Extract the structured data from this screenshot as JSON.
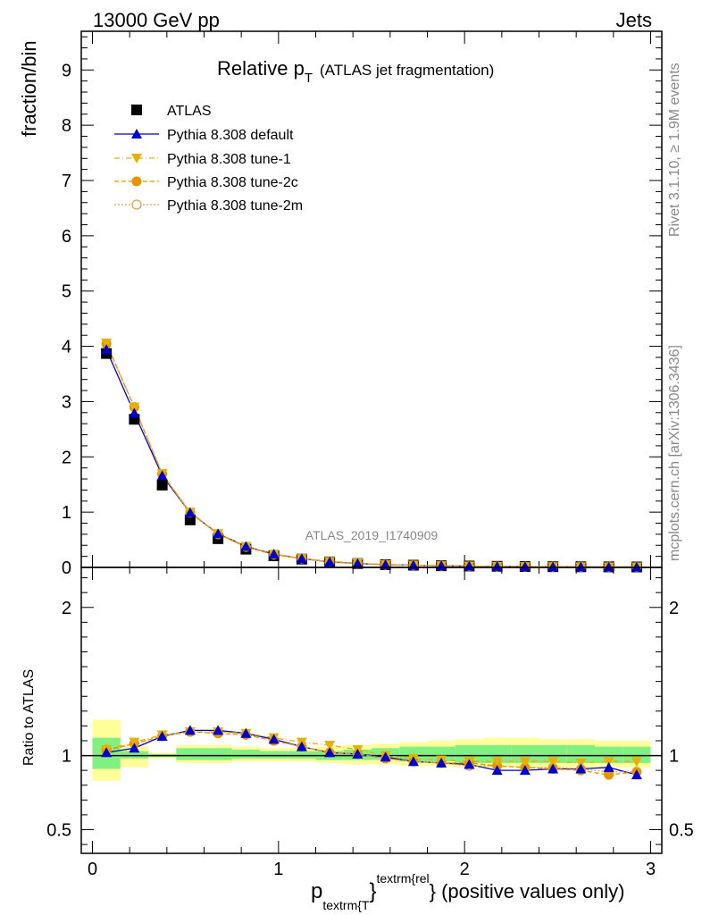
{
  "header": {
    "left": "13000 GeV pp",
    "right": "Jets"
  },
  "title": {
    "main": "Relative p",
    "sub": "T",
    "paren": "(ATLAS jet fragmentation)"
  },
  "side_labels": {
    "rivet": "Rivet 3.1.10, ≥ 1.9M events",
    "mcplots": "mcplots.cern.ch [arXiv:1306.3436]"
  },
  "watermark": "ATLAS_2019_I1740909",
  "axes": {
    "y_main_label": "fraction/bin",
    "y_ratio_label": "Ratio to ATLAS",
    "x_label_p": "p",
    "x_label_sub": "textrm{T",
    "x_label_brace": "}",
    "x_label_sup": "textrm{rel",
    "x_label_rest": "} (positive values only)",
    "main_y_ticks": [
      "0",
      "1",
      "2",
      "3",
      "4",
      "5",
      "6",
      "7",
      "8",
      "9"
    ],
    "ratio_y_ticks": [
      "0.5",
      "1",
      "2"
    ],
    "x_ticks": [
      "0",
      "1",
      "2",
      "3"
    ]
  },
  "legend": {
    "atlas": "ATLAS",
    "default": "Pythia 8.308 default",
    "tune1": "Pythia 8.308 tune-1",
    "tune2c": "Pythia 8.308 tune-2c",
    "tune2m": "Pythia 8.308 tune-2m"
  },
  "colors": {
    "atlas": "#000000",
    "default": "#0000cc",
    "tune1": "#e8b000",
    "tune2c": "#e69500",
    "tune2m": "#e0a040",
    "band_inner": "#80f080",
    "band_outer": "#ffff99"
  },
  "chart_data": {
    "type": "line",
    "xlim": [
      -0.06,
      3.06
    ],
    "ylim_main": [
      0,
      9.7
    ],
    "ylim_ratio": [
      0.34,
      2.27
    ],
    "x": [
      0.075,
      0.225,
      0.375,
      0.525,
      0.675,
      0.825,
      0.975,
      1.125,
      1.275,
      1.425,
      1.575,
      1.725,
      1.875,
      2.025,
      2.175,
      2.325,
      2.475,
      2.625,
      2.775,
      2.925
    ],
    "bin_edges": [
      0.0,
      0.15,
      0.3,
      0.45,
      0.6,
      0.75,
      0.9,
      1.05,
      1.2,
      1.35,
      1.5,
      1.65,
      1.8,
      1.95,
      2.1,
      2.25,
      2.4,
      2.55,
      2.7,
      2.85,
      3.0
    ],
    "atlas": [
      3.87,
      2.68,
      1.49,
      0.86,
      0.52,
      0.33,
      0.21,
      0.15,
      0.1,
      0.07,
      0.05,
      0.04,
      0.03,
      0.025,
      0.02,
      0.016,
      0.013,
      0.011,
      0.009,
      0.008
    ],
    "series_main": [
      {
        "key": "default",
        "values": [
          3.94,
          2.79,
          1.66,
          0.99,
          0.61,
          0.38,
          0.24,
          0.16,
          0.1,
          0.07,
          0.05,
          0.04,
          0.03,
          0.024,
          0.018,
          0.015,
          0.012,
          0.01,
          0.008,
          0.007
        ]
      },
      {
        "key": "tune1",
        "values": [
          4.06,
          2.9,
          1.7,
          1.0,
          0.61,
          0.38,
          0.24,
          0.16,
          0.11,
          0.08,
          0.05,
          0.04,
          0.03,
          0.024,
          0.019,
          0.015,
          0.012,
          0.01,
          0.009,
          0.008
        ]
      },
      {
        "key": "tune2c",
        "values": [
          4.05,
          2.9,
          1.69,
          0.99,
          0.6,
          0.37,
          0.23,
          0.16,
          0.1,
          0.07,
          0.05,
          0.04,
          0.03,
          0.023,
          0.018,
          0.015,
          0.012,
          0.01,
          0.008,
          0.007
        ]
      },
      {
        "key": "tune2m",
        "values": [
          4.04,
          2.9,
          1.69,
          0.99,
          0.6,
          0.37,
          0.23,
          0.16,
          0.1,
          0.07,
          0.05,
          0.04,
          0.03,
          0.023,
          0.018,
          0.015,
          0.012,
          0.01,
          0.008,
          0.007
        ]
      }
    ],
    "band_inner": [
      [
        0.91,
        1.12
      ],
      [
        0.98,
        1.03
      ],
      [
        0.99,
        1.01
      ],
      [
        0.97,
        1.05
      ],
      [
        0.97,
        1.05
      ],
      [
        0.98,
        1.04
      ],
      [
        0.98,
        1.03
      ],
      [
        0.98,
        1.03
      ],
      [
        0.97,
        1.03
      ],
      [
        0.97,
        1.04
      ],
      [
        0.97,
        1.05
      ],
      [
        0.96,
        1.06
      ],
      [
        0.96,
        1.06
      ],
      [
        0.95,
        1.07
      ],
      [
        0.95,
        1.07
      ],
      [
        0.95,
        1.07
      ],
      [
        0.95,
        1.07
      ],
      [
        0.95,
        1.07
      ],
      [
        0.95,
        1.06
      ],
      [
        0.95,
        1.06
      ]
    ],
    "band_outer": [
      [
        0.83,
        1.24
      ],
      [
        0.92,
        1.06
      ],
      [
        0.98,
        1.02
      ],
      [
        0.95,
        1.07
      ],
      [
        0.95,
        1.07
      ],
      [
        0.96,
        1.06
      ],
      [
        0.96,
        1.05
      ],
      [
        0.96,
        1.05
      ],
      [
        0.95,
        1.06
      ],
      [
        0.94,
        1.07
      ],
      [
        0.94,
        1.08
      ],
      [
        0.93,
        1.09
      ],
      [
        0.93,
        1.1
      ],
      [
        0.92,
        1.11
      ],
      [
        0.92,
        1.12
      ],
      [
        0.92,
        1.12
      ],
      [
        0.92,
        1.11
      ],
      [
        0.92,
        1.11
      ],
      [
        0.92,
        1.1
      ],
      [
        0.92,
        1.1
      ]
    ],
    "series_ratio": [
      {
        "key": "default",
        "values": [
          1.02,
          1.05,
          1.13,
          1.17,
          1.17,
          1.15,
          1.11,
          1.06,
          1.02,
          1.01,
          0.99,
          0.96,
          0.95,
          0.94,
          0.9,
          0.9,
          0.91,
          0.91,
          0.92,
          0.87
        ]
      },
      {
        "key": "tune1",
        "values": [
          1.04,
          1.09,
          1.14,
          1.16,
          1.16,
          1.15,
          1.12,
          1.09,
          1.07,
          1.04,
          1.0,
          0.98,
          0.97,
          0.96,
          0.96,
          0.96,
          0.96,
          0.95,
          0.96,
          0.96
        ]
      },
      {
        "key": "tune2c",
        "values": [
          1.04,
          1.08,
          1.13,
          1.16,
          1.15,
          1.14,
          1.1,
          1.06,
          1.02,
          1.01,
          0.98,
          0.96,
          0.95,
          0.95,
          0.93,
          0.92,
          0.91,
          0.9,
          0.87,
          0.89
        ]
      },
      {
        "key": "tune2m",
        "values": [
          1.03,
          1.08,
          1.13,
          1.16,
          1.15,
          1.14,
          1.1,
          1.06,
          1.02,
          1.01,
          0.98,
          0.96,
          0.95,
          0.93,
          0.93,
          0.92,
          0.92,
          0.91,
          0.89,
          0.89
        ]
      }
    ]
  }
}
